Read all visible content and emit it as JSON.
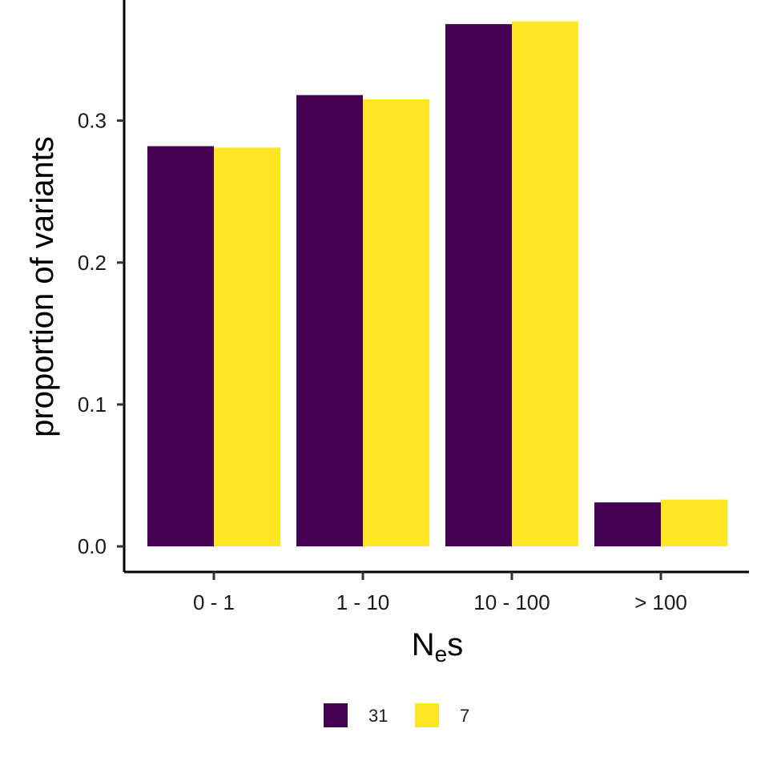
{
  "chart_data": {
    "type": "bar",
    "categories": [
      "0 - 1",
      "1 - 10",
      "10 - 100",
      "> 100"
    ],
    "series": [
      {
        "name": "31",
        "color": "#440154",
        "values": [
          0.282,
          0.318,
          0.368,
          0.031
        ]
      },
      {
        "name": "7",
        "color": "#FDE725",
        "values": [
          0.281,
          0.315,
          0.37,
          0.033
        ]
      }
    ],
    "ylim": [
      -0.018,
      0.385
    ],
    "yticks": [
      0.0,
      0.1,
      0.2,
      0.3
    ],
    "ytick_labels": [
      "0.0",
      "0.1",
      "0.2",
      "0.3"
    ],
    "ylabel": "proportion of variants",
    "xlabel_main": "N",
    "xlabel_sub": "e",
    "xlabel_tail": "s",
    "legend_position": "bottom",
    "grid": false
  }
}
